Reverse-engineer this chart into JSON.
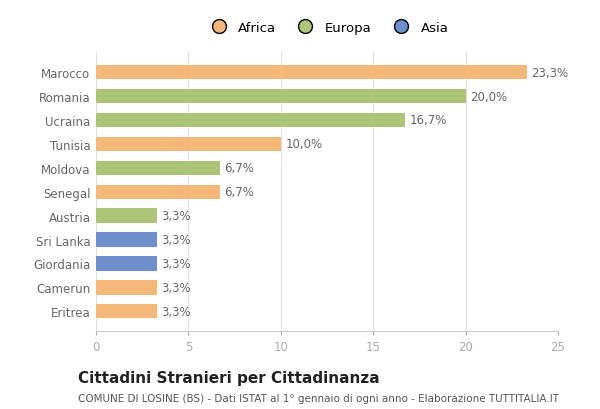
{
  "categories": [
    "Eritrea",
    "Camerun",
    "Giordania",
    "Sri Lanka",
    "Austria",
    "Senegal",
    "Moldova",
    "Tunisia",
    "Ucraina",
    "Romania",
    "Marocco"
  ],
  "values": [
    3.3,
    3.3,
    3.3,
    3.3,
    3.3,
    6.7,
    6.7,
    10.0,
    16.7,
    20.0,
    23.3
  ],
  "bar_colors": [
    "#f5b87a",
    "#f5b87a",
    "#6e8fc9",
    "#6e8fc9",
    "#adc47a",
    "#f5b87a",
    "#adc47a",
    "#f5b87a",
    "#adc47a",
    "#adc47a",
    "#f5b87a"
  ],
  "labels": [
    "3,3%",
    "3,3%",
    "3,3%",
    "3,3%",
    "3,3%",
    "6,7%",
    "6,7%",
    "10,0%",
    "16,7%",
    "20,0%",
    "23,3%"
  ],
  "legend_labels": [
    "Africa",
    "Europa",
    "Asia"
  ],
  "legend_colors": [
    "#f5b87a",
    "#adc47a",
    "#6e8fc9"
  ],
  "title": "Cittadini Stranieri per Cittadinanza",
  "subtitle": "COMUNE DI LOSINE (BS) - Dati ISTAT al 1° gennaio di ogni anno - Elaborazione TUTTITALIA.IT",
  "xlim": [
    0,
    25
  ],
  "xticks": [
    0,
    5,
    10,
    15,
    20,
    25
  ],
  "bar_height": 0.6,
  "label_fontsize": 8.5,
  "tick_fontsize": 8.5,
  "title_fontsize": 11,
  "subtitle_fontsize": 7.5,
  "background_color": "#ffffff",
  "grid_color": "#e0e0e0"
}
